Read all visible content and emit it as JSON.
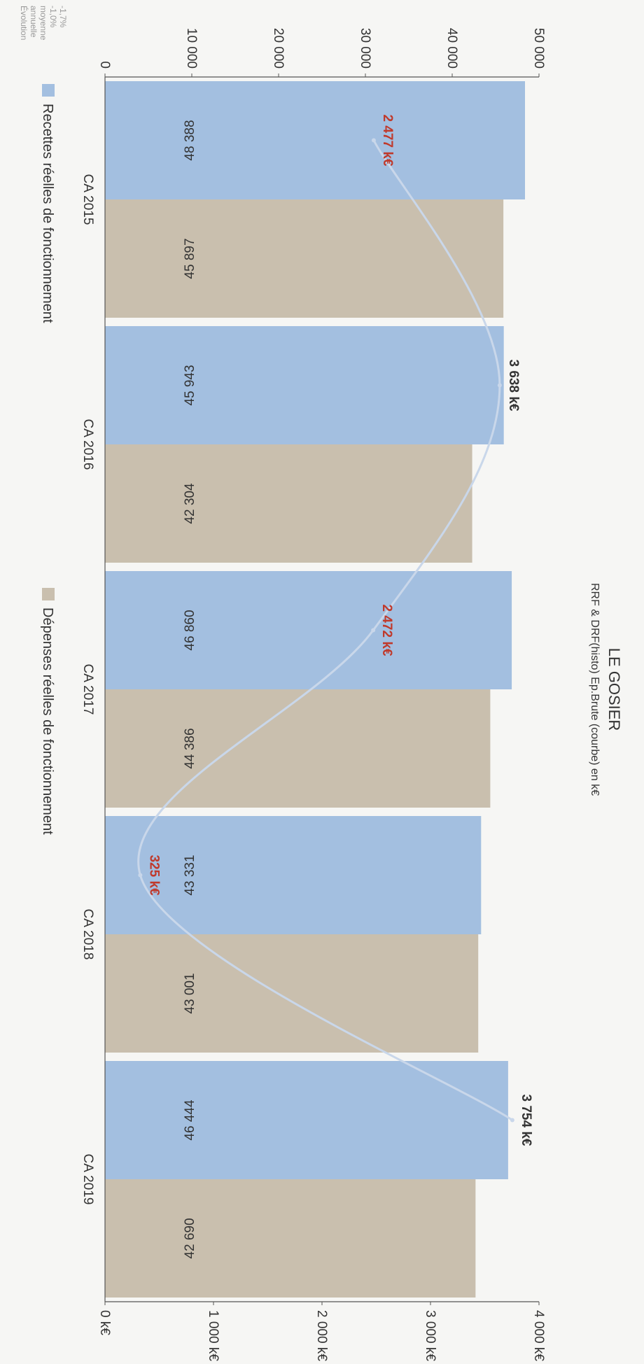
{
  "chart_data": {
    "type": "bar",
    "title": "LE GOSIER",
    "subtitle": "RRF & DRF(histo) Ep.Brute (courbe) en k€",
    "categories": [
      "CA 2015",
      "CA 2016",
      "CA 2017",
      "CA 2018",
      "CA 2019"
    ],
    "series": [
      {
        "name": "Recettes réelles de fonctionnement",
        "color": "#a3bfe0",
        "values": [
          48388,
          45943,
          46860,
          43331,
          46444
        ],
        "labels": [
          "48 388",
          "45 943",
          "46 860",
          "43 331",
          "46 444"
        ]
      },
      {
        "name": "Dépenses réelles de fonctionnement",
        "color": "#c9bfae",
        "values": [
          45897,
          42304,
          44386,
          43001,
          42690
        ],
        "labels": [
          "45 897",
          "42 304",
          "44 386",
          "43 001",
          "42 690"
        ]
      }
    ],
    "line": {
      "values": [
        2477,
        3638,
        2472,
        325,
        3754
      ],
      "labels": [
        "2 477 k€",
        "3 638 k€",
        "2 472 k€",
        "325 k€",
        "3 754 k€"
      ],
      "label_colors": [
        "#c0392b",
        "#333333",
        "#c0392b",
        "#c0392b",
        "#333333"
      ],
      "color": "#c9d7ea"
    },
    "left_axis": {
      "range": [
        0,
        50000
      ],
      "ticks": [
        0,
        10000,
        20000,
        30000,
        40000,
        50000
      ],
      "tick_labels": [
        "0",
        "10 000",
        "20 000",
        "30 000",
        "40 000",
        "50 000"
      ]
    },
    "right_axis": {
      "range": [
        0,
        4000
      ],
      "ticks": [
        0,
        1000,
        2000,
        3000,
        4000
      ],
      "tick_labels": [
        "0 k€",
        "1 000 k€",
        "2 000 k€",
        "3 000 k€",
        "4 000 k€"
      ]
    },
    "legend_position": "bottom",
    "corner_note": [
      "Évolution",
      "annuelle",
      "moyenne",
      "-1,0%",
      "-1,7%"
    ]
  }
}
